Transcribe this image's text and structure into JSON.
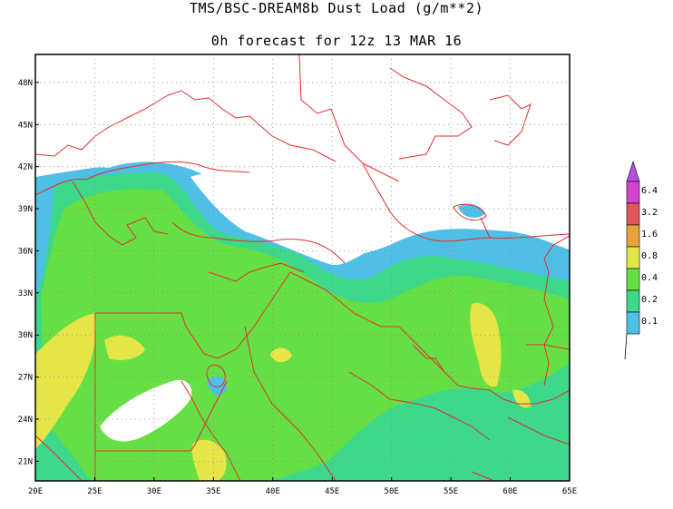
{
  "title": "TMS/BSC-DREAM8b Dust Load (g/m**2)",
  "subtitle": "0h forecast for 12z 13 MAR 16",
  "lat_labels": [
    "48N",
    "45N",
    "42N",
    "39N",
    "36N",
    "33N",
    "30N",
    "27N",
    "24N",
    "21N"
  ],
  "lon_labels": [
    "20E",
    "25E",
    "30E",
    "35E",
    "40E",
    "45E",
    "50E",
    "55E",
    "60E",
    "65E"
  ],
  "colorbar": {
    "levels": [
      "6.4",
      "3.2",
      "1.6",
      "0.8",
      "0.4",
      "0.2",
      "0.1"
    ],
    "colors": {
      "0.1": "#4fbfe6",
      "0.2": "#3ed88a",
      "0.4": "#66df44",
      "0.8": "#e5e548",
      "1.6": "#e6a23c",
      "3.2": "#e0565a",
      "6.4": "#d146d1",
      "above": "#b44fe0"
    }
  },
  "colors": {
    "borders": "#e03030",
    "frame": "#000000",
    "grid": "#888888",
    "background": "#ffffff"
  }
}
